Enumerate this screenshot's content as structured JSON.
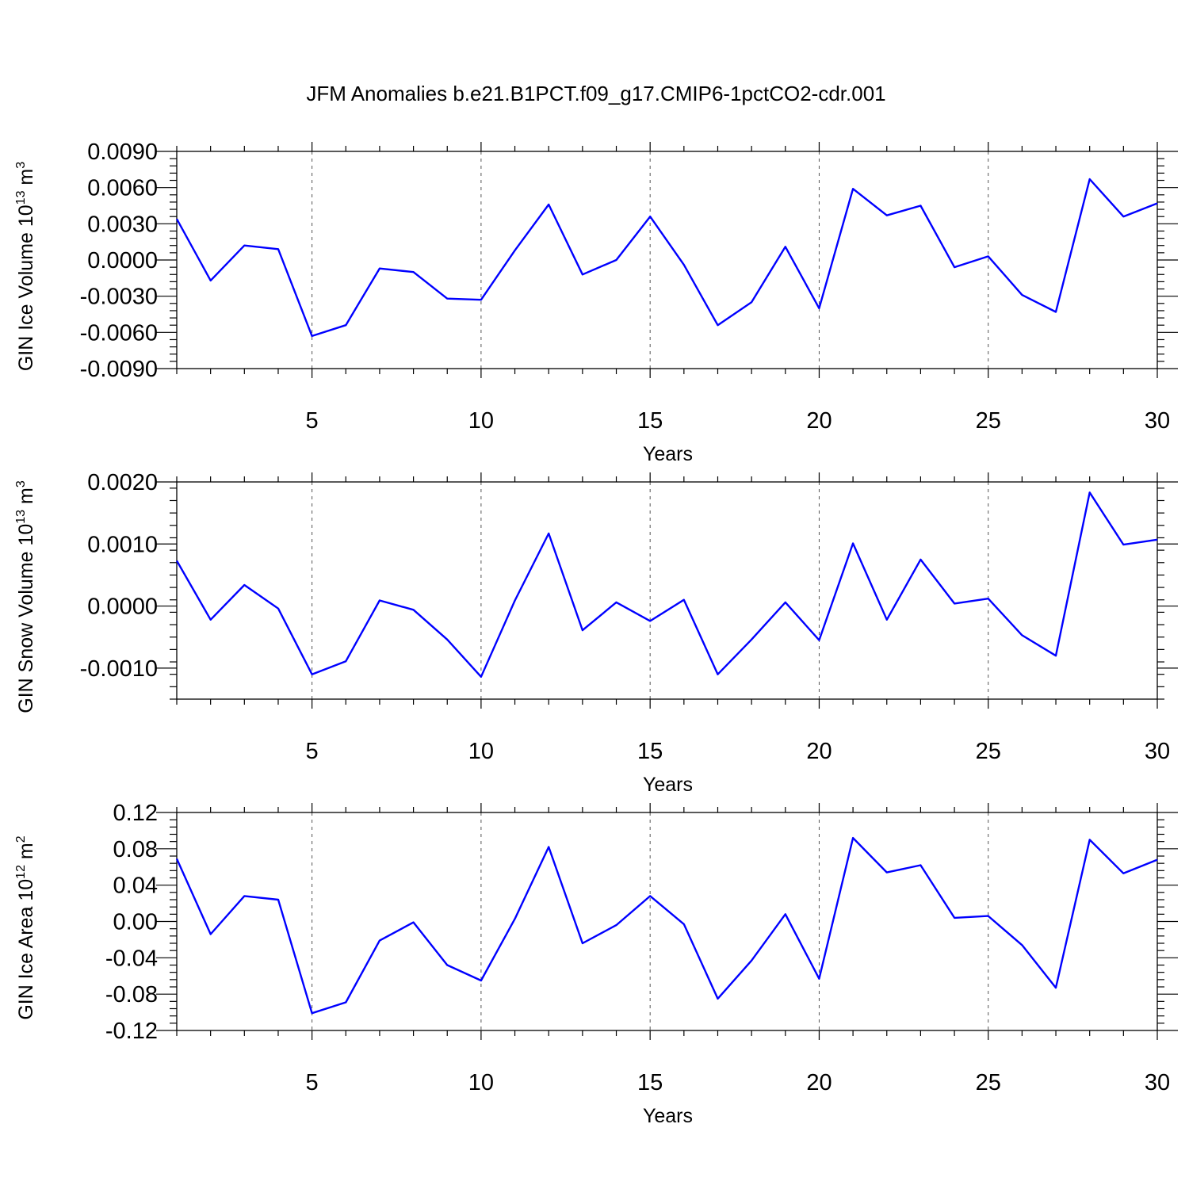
{
  "chart_data": [
    {
      "type": "line",
      "title": "JFM Anomalies b.e21.B1PCT.f09_g17.CMIP6-1pctCO2-cdr.001",
      "xlabel": "Years",
      "ylabel_main": "GIN Ice Volume 10",
      "ylabel_exp": "13",
      "ylabel_unit": "m",
      "ylabel_unit_exp": "3",
      "xlim": [
        1,
        30
      ],
      "ylim": [
        -0.009,
        0.009
      ],
      "x_ticks": [
        "5",
        "10",
        "15",
        "20",
        "25",
        "30"
      ],
      "x_tick_values": [
        5,
        10,
        15,
        20,
        25,
        30
      ],
      "y_ticks": [
        "0.0090",
        "0.0060",
        "0.0030",
        "0.0000",
        "-0.0030",
        "-0.0060",
        "-0.0090"
      ],
      "y_tick_values": [
        0.009,
        0.006,
        0.003,
        0,
        -0.003,
        -0.006,
        -0.009
      ],
      "grid": "dashed vertical at labeled x ticks",
      "series": [
        {
          "name": "GIN Ice Volume",
          "color": "#0000ff",
          "x": [
            1,
            2,
            3,
            4,
            5,
            6,
            7,
            8,
            9,
            10,
            11,
            12,
            13,
            14,
            15,
            16,
            17,
            18,
            19,
            20,
            21,
            22,
            23,
            24,
            25,
            26,
            27,
            28,
            29,
            30
          ],
          "values": [
            0.0034,
            -0.0017,
            0.0012,
            0.0009,
            -0.0063,
            -0.0054,
            -0.0007,
            -0.001,
            -0.0032,
            -0.0033,
            0.0008,
            0.0046,
            -0.0012,
            0.0,
            0.0036,
            -0.0004,
            -0.0054,
            -0.0035,
            0.0011,
            -0.004,
            0.0059,
            0.0037,
            0.0045,
            -0.0006,
            0.0003,
            -0.0029,
            -0.0043,
            0.0067,
            0.0036,
            0.0047
          ]
        }
      ]
    },
    {
      "type": "line",
      "xlabel": "Years",
      "ylabel_main": "GIN Snow Volume 10",
      "ylabel_exp": "13",
      "ylabel_unit": "m",
      "ylabel_unit_exp": "3",
      "xlim": [
        1,
        30
      ],
      "ylim": [
        -0.0015,
        0.002
      ],
      "x_ticks": [
        "5",
        "10",
        "15",
        "20",
        "25",
        "30"
      ],
      "x_tick_values": [
        5,
        10,
        15,
        20,
        25,
        30
      ],
      "y_ticks": [
        "0.0020",
        "0.0010",
        "0.0000",
        "-0.0010"
      ],
      "y_tick_values": [
        0.002,
        0.001,
        0,
        -0.001
      ],
      "grid": "dashed vertical at labeled x ticks",
      "series": [
        {
          "name": "GIN Snow Volume",
          "color": "#0000ff",
          "x": [
            1,
            2,
            3,
            4,
            5,
            6,
            7,
            8,
            9,
            10,
            11,
            12,
            13,
            14,
            15,
            16,
            17,
            18,
            19,
            20,
            21,
            22,
            23,
            24,
            25,
            26,
            27,
            28,
            29,
            30
          ],
          "values": [
            0.00073,
            -0.00022,
            0.00034,
            -4e-05,
            -0.0011,
            -0.00089,
            9e-05,
            -6e-05,
            -0.00054,
            -0.00114,
            9e-05,
            0.00117,
            -0.00039,
            6e-05,
            -0.00024,
            0.0001,
            -0.0011,
            -0.00054,
            6e-05,
            -0.00055,
            0.00101,
            -0.00022,
            0.00075,
            4e-05,
            0.00012,
            -0.00047,
            -0.0008,
            0.00183,
            0.00099,
            0.00107
          ]
        }
      ]
    },
    {
      "type": "line",
      "xlabel": "Years",
      "ylabel_main": "GIN Ice Area 10",
      "ylabel_exp": "12",
      "ylabel_unit": "m",
      "ylabel_unit_exp": "2",
      "xlim": [
        1,
        30
      ],
      "ylim": [
        -0.12,
        0.12
      ],
      "x_ticks": [
        "5",
        "10",
        "15",
        "20",
        "25",
        "30"
      ],
      "x_tick_values": [
        5,
        10,
        15,
        20,
        25,
        30
      ],
      "y_ticks": [
        "0.12",
        "0.08",
        "0.04",
        "0.00",
        "-0.04",
        "-0.08",
        "-0.12"
      ],
      "y_tick_values": [
        0.12,
        0.08,
        0.04,
        0,
        -0.04,
        -0.08,
        -0.12
      ],
      "grid": "dashed vertical at labeled x ticks",
      "series": [
        {
          "name": "GIN Ice Area",
          "color": "#0000ff",
          "x": [
            1,
            2,
            3,
            4,
            5,
            6,
            7,
            8,
            9,
            10,
            11,
            12,
            13,
            14,
            15,
            16,
            17,
            18,
            19,
            20,
            21,
            22,
            23,
            24,
            25,
            26,
            27,
            28,
            29,
            30
          ],
          "values": [
            0.069,
            -0.014,
            0.028,
            0.024,
            -0.101,
            -0.089,
            -0.021,
            -0.001,
            -0.048,
            -0.065,
            0.003,
            0.082,
            -0.024,
            -0.004,
            0.028,
            -0.003,
            -0.085,
            -0.043,
            0.008,
            -0.063,
            0.092,
            0.054,
            0.062,
            0.004,
            0.006,
            -0.026,
            -0.073,
            0.09,
            0.053,
            0.068
          ]
        }
      ]
    }
  ]
}
